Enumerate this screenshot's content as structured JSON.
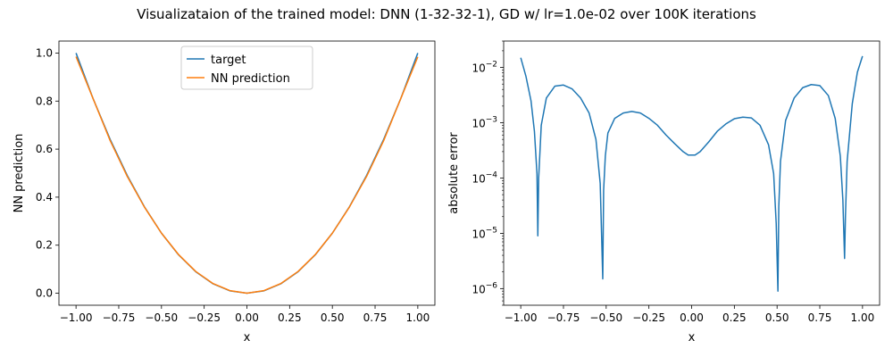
{
  "figure": {
    "title": "Visualizataion of the trained model: DNN (1-32-32-1), GD w/ lr=1.0e-02 over 100K iterations"
  },
  "colors": {
    "target": "#1f77b4",
    "prediction": "#ff7f0e",
    "error": "#1f77b4"
  },
  "chart_data": [
    {
      "type": "line",
      "xlabel": "x",
      "ylabel": "NN prediction",
      "xlim": [
        -1.1,
        1.1
      ],
      "ylim": [
        -0.05,
        1.05
      ],
      "xticks": [
        -1.0,
        -0.75,
        -0.5,
        -0.25,
        0.0,
        0.25,
        0.5,
        0.75,
        1.0
      ],
      "xtick_labels": [
        "−1.00",
        "−0.75",
        "−0.50",
        "−0.25",
        "0.00",
        "0.25",
        "0.50",
        "0.75",
        "1.00"
      ],
      "yticks": [
        0.0,
        0.2,
        0.4,
        0.6,
        0.8,
        1.0
      ],
      "ytick_labels": [
        "0.0",
        "0.2",
        "0.4",
        "0.6",
        "0.8",
        "1.0"
      ],
      "legend": "upper center",
      "series": [
        {
          "name": "target",
          "x": [
            -1.0,
            -0.9,
            -0.8,
            -0.7,
            -0.6,
            -0.5,
            -0.4,
            -0.3,
            -0.2,
            -0.1,
            0.0,
            0.1,
            0.2,
            0.3,
            0.4,
            0.5,
            0.6,
            0.7,
            0.8,
            0.9,
            1.0
          ],
          "y": [
            1.0,
            0.81,
            0.64,
            0.49,
            0.36,
            0.25,
            0.16,
            0.09,
            0.04,
            0.01,
            0.0,
            0.01,
            0.04,
            0.09,
            0.16,
            0.25,
            0.36,
            0.49,
            0.64,
            0.81,
            1.0
          ]
        },
        {
          "name": "NN prediction",
          "x": [
            -1.0,
            -0.9,
            -0.8,
            -0.7,
            -0.6,
            -0.5,
            -0.4,
            -0.3,
            -0.2,
            -0.1,
            0.0,
            0.1,
            0.2,
            0.3,
            0.4,
            0.5,
            0.6,
            0.7,
            0.8,
            0.9,
            1.0
          ],
          "y": [
            0.985,
            0.81,
            0.635,
            0.486,
            0.359,
            0.25,
            0.161,
            0.091,
            0.041,
            0.011,
            0.0003,
            0.011,
            0.041,
            0.091,
            0.161,
            0.25,
            0.359,
            0.486,
            0.635,
            0.81,
            0.984
          ]
        }
      ]
    },
    {
      "type": "line",
      "xlabel": "x",
      "ylabel": "absolute error",
      "yscale": "log",
      "xlim": [
        -1.1,
        1.1
      ],
      "ylim": [
        5e-07,
        0.03
      ],
      "xticks": [
        -1.0,
        -0.75,
        -0.5,
        -0.25,
        0.0,
        0.25,
        0.5,
        0.75,
        1.0
      ],
      "xtick_labels": [
        "−1.00",
        "−0.75",
        "−0.50",
        "−0.25",
        "0.00",
        "0.25",
        "0.50",
        "0.75",
        "1.00"
      ],
      "yticks": [
        1e-06,
        1e-05,
        0.0001,
        0.001,
        0.01
      ],
      "ytick_labels": [
        {
          "base": "10",
          "exp": "−6"
        },
        {
          "base": "10",
          "exp": "−5"
        },
        {
          "base": "10",
          "exp": "−4"
        },
        {
          "base": "10",
          "exp": "−3"
        },
        {
          "base": "10",
          "exp": "−2"
        }
      ],
      "series": [
        {
          "x": [
            -1.0,
            -0.97,
            -0.94,
            -0.92,
            -0.905,
            -0.9,
            -0.895,
            -0.88,
            -0.85,
            -0.8,
            -0.75,
            -0.7,
            -0.65,
            -0.6,
            -0.56,
            -0.535,
            -0.52,
            -0.515,
            -0.505,
            -0.49,
            -0.45,
            -0.4,
            -0.35,
            -0.3,
            -0.25,
            -0.2,
            -0.15,
            -0.1,
            -0.05,
            -0.02,
            0.02,
            0.05,
            0.1,
            0.15,
            0.2,
            0.25,
            0.3,
            0.35,
            0.4,
            0.45,
            0.48,
            0.495,
            0.505,
            0.51,
            0.52,
            0.55,
            0.6,
            0.65,
            0.7,
            0.75,
            0.8,
            0.84,
            0.87,
            0.885,
            0.895,
            0.9,
            0.91,
            0.94,
            0.97,
            1.0
          ],
          "y": [
            0.015,
            0.007,
            0.0025,
            0.0007,
            0.00012,
            9e-06,
            0.0001,
            0.0009,
            0.0028,
            0.0046,
            0.0048,
            0.0041,
            0.0028,
            0.0015,
            0.0005,
            8e-05,
            1.5e-06,
            6e-05,
            0.00025,
            0.00065,
            0.0012,
            0.0015,
            0.0016,
            0.0015,
            0.0012,
            0.0009,
            0.0006,
            0.00042,
            0.0003,
            0.00026,
            0.00026,
            0.0003,
            0.00045,
            0.0007,
            0.00095,
            0.00118,
            0.00126,
            0.00122,
            0.0009,
            0.0004,
            0.00012,
            1.5e-05,
            9e-07,
            3e-05,
            0.0002,
            0.0011,
            0.0028,
            0.0043,
            0.0049,
            0.0047,
            0.0031,
            0.0012,
            0.00025,
            4e-05,
            3.5e-06,
            2e-05,
            0.0002,
            0.0022,
            0.0082,
            0.016
          ]
        }
      ]
    }
  ]
}
